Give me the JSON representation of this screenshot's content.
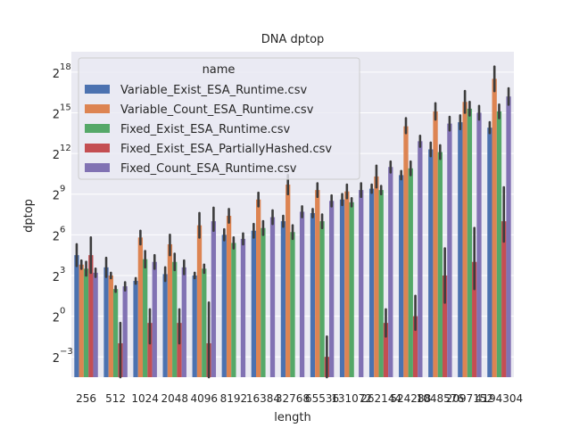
{
  "chart_data": {
    "type": "bar",
    "title": "DNA dptop",
    "xlabel": "length",
    "ylabel": "dptop",
    "y_scale": "log2",
    "ylim_exponent": [
      -4.5,
      19.5
    ],
    "grid": true,
    "legend_position": "top-left",
    "legend_title": "name",
    "y_ticks": [
      {
        "base": "2",
        "exp": "18",
        "e": 18
      },
      {
        "base": "2",
        "exp": "15",
        "e": 15
      },
      {
        "base": "2",
        "exp": "12",
        "e": 12
      },
      {
        "base": "2",
        "exp": "9",
        "e": 9
      },
      {
        "base": "2",
        "exp": "6",
        "e": 6
      },
      {
        "base": "2",
        "exp": "3",
        "e": 3
      },
      {
        "base": "2",
        "exp": "0",
        "e": 0
      },
      {
        "base": "2",
        "exp": "−3",
        "e": -3
      }
    ],
    "categories": [
      "256",
      "512",
      "1024",
      "2048",
      "4096",
      "8192",
      "16384",
      "32768",
      "65536",
      "131072",
      "262144",
      "524288",
      "1048576",
      "2097152",
      "4194304"
    ],
    "series": [
      {
        "name": "Variable_Exist_ESA_Runtime.csv",
        "color": "#4c72b0",
        "values": [
          4.5,
          3.6,
          2.6,
          3.1,
          3.0,
          6.0,
          6.3,
          7.0,
          7.6,
          8.6,
          9.4,
          10.4,
          12.3,
          14.3,
          13.9
        ],
        "err": [
          [
            3.7,
            5.3
          ],
          [
            2.9,
            4.3
          ],
          [
            2.4,
            2.8
          ],
          [
            2.6,
            3.6
          ],
          [
            2.8,
            3.2
          ],
          [
            5.6,
            6.4
          ],
          [
            5.8,
            6.8
          ],
          [
            6.6,
            7.4
          ],
          [
            7.3,
            7.9
          ],
          [
            8.2,
            9.0
          ],
          [
            9.1,
            9.7
          ],
          [
            10.1,
            10.7
          ],
          [
            11.8,
            12.8
          ],
          [
            13.8,
            14.8
          ],
          [
            13.5,
            14.3
          ]
        ]
      },
      {
        "name": "Variable_Count_ESA_Runtime.csv",
        "color": "#dd8452",
        "values": [
          3.8,
          3.0,
          5.8,
          5.3,
          6.7,
          7.4,
          8.6,
          9.7,
          9.3,
          9.2,
          10.3,
          14.0,
          15.1,
          15.8,
          17.5
        ],
        "err": [
          [
            3.5,
            4.1
          ],
          [
            2.8,
            3.2
          ],
          [
            5.3,
            6.3
          ],
          [
            4.5,
            6.0
          ],
          [
            5.8,
            7.6
          ],
          [
            6.9,
            7.9
          ],
          [
            8.1,
            9.1
          ],
          [
            9.0,
            10.4
          ],
          [
            8.8,
            9.8
          ],
          [
            8.7,
            9.7
          ],
          [
            9.5,
            11.1
          ],
          [
            13.5,
            14.6
          ],
          [
            14.5,
            15.7
          ],
          [
            15.0,
            16.6
          ],
          [
            16.6,
            18.4
          ]
        ]
      },
      {
        "name": "Fixed_Exist_ESA_Runtime.csv",
        "color": "#55a868",
        "values": [
          3.5,
          2.0,
          4.2,
          4.0,
          3.5,
          5.4,
          6.5,
          6.2,
          7.0,
          8.4,
          9.3,
          10.9,
          12.1,
          15.3,
          15.1
        ],
        "err": [
          [
            3.0,
            4.0
          ],
          [
            1.8,
            2.2
          ],
          [
            3.6,
            4.8
          ],
          [
            3.4,
            4.6
          ],
          [
            3.2,
            3.8
          ],
          [
            5.0,
            5.8
          ],
          [
            6.0,
            7.0
          ],
          [
            5.7,
            6.7
          ],
          [
            6.5,
            7.5
          ],
          [
            8.1,
            8.7
          ],
          [
            9.0,
            9.6
          ],
          [
            10.4,
            11.4
          ],
          [
            11.6,
            12.6
          ],
          [
            14.8,
            15.8
          ],
          [
            14.6,
            15.6
          ]
        ]
      },
      {
        "name": "Fixed_Exist_ESA_PartiallyHashed.csv",
        "color": "#c44e52",
        "values": [
          4.5,
          -2.0,
          -0.5,
          -0.5,
          -2.0,
          null,
          null,
          null,
          -3.0,
          null,
          -0.5,
          0.0,
          3.0,
          4.0,
          7.0
        ],
        "err": [
          [
            3.2,
            5.8
          ],
          [
            -4.5,
            -0.5
          ],
          [
            -2.0,
            0.5
          ],
          [
            -2.0,
            0.5
          ],
          [
            -4.5,
            1.0
          ],
          null,
          null,
          null,
          [
            -4.5,
            -1.5
          ],
          null,
          [
            -1.5,
            0.5
          ],
          [
            -1.0,
            1.5
          ],
          [
            1.0,
            5.0
          ],
          [
            2.0,
            6.5
          ],
          [
            5.5,
            9.5
          ]
        ]
      },
      {
        "name": "Fixed_Count_ESA_Runtime.csv",
        "color": "#8172b3",
        "values": [
          3.2,
          2.2,
          4.0,
          3.6,
          7.0,
          5.7,
          7.3,
          7.7,
          8.5,
          9.3,
          11.0,
          12.9,
          14.2,
          15.0,
          16.2
        ],
        "err": [
          [
            2.9,
            3.5
          ],
          [
            1.9,
            2.5
          ],
          [
            3.5,
            4.5
          ],
          [
            3.1,
            4.1
          ],
          [
            6.3,
            8.0
          ],
          [
            5.3,
            6.1
          ],
          [
            6.8,
            7.8
          ],
          [
            7.3,
            8.1
          ],
          [
            8.1,
            8.9
          ],
          [
            8.8,
            9.8
          ],
          [
            10.6,
            11.4
          ],
          [
            12.5,
            13.3
          ],
          [
            13.7,
            14.7
          ],
          [
            14.5,
            15.5
          ],
          [
            15.6,
            16.8
          ]
        ]
      }
    ]
  }
}
